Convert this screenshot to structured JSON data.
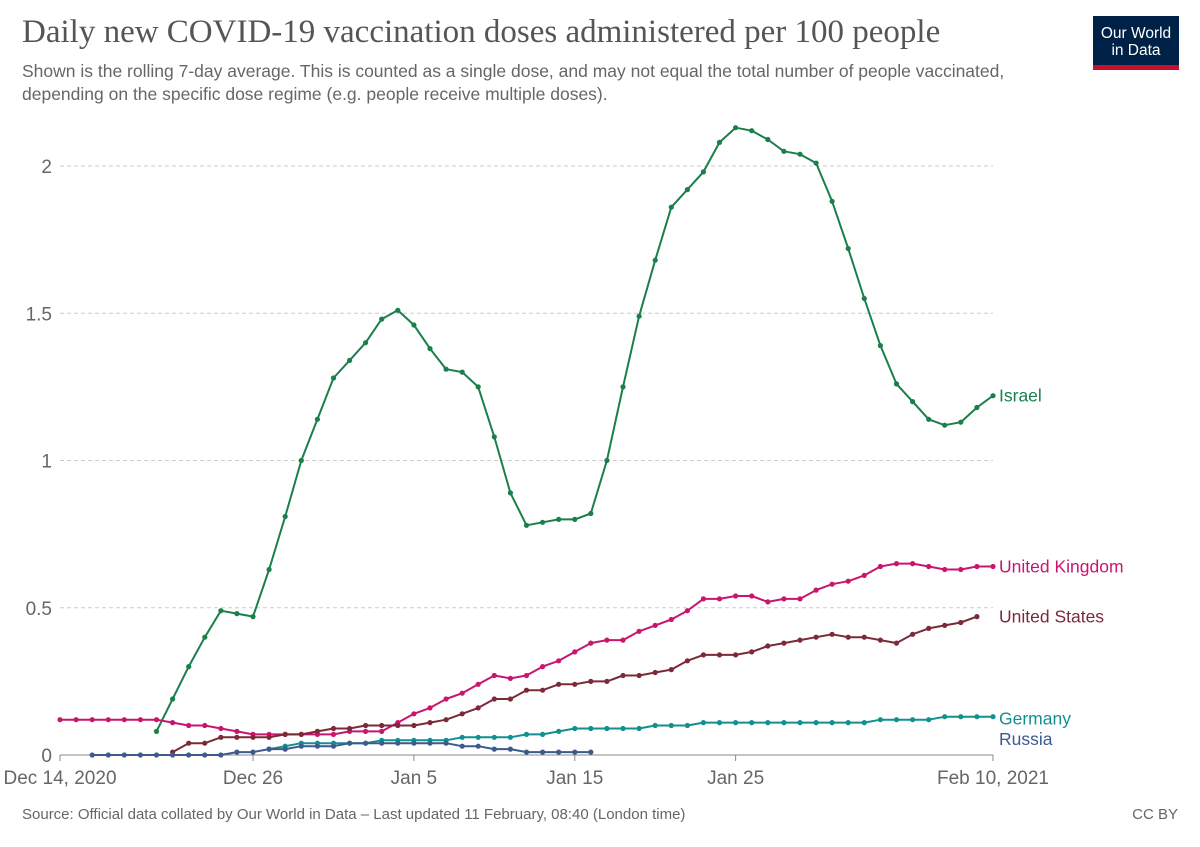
{
  "header": {
    "title": "Daily new COVID-19 vaccination doses administered per 100 people",
    "subtitle": "Shown is the rolling 7-day average. This is counted as a single dose, and may not equal the total number of people vaccinated, depending on the specific dose regime (e.g. people receive multiple doses).",
    "logo_line1": "Our World",
    "logo_line2": "in Data"
  },
  "footer": {
    "source": "Source: Official data collated by Our World in Data – Last updated 11 February, 08:40 (London time)",
    "license": "CC BY"
  },
  "colors": {
    "Israel": "#1a7f4b",
    "United Kingdom": "#c8156e",
    "United States": "#7a2a38",
    "Germany": "#12908f",
    "Russia": "#3c5a8c",
    "grid": "#cccccc",
    "axis_text": "#666666"
  },
  "chart_data": {
    "type": "line",
    "title": "Daily new COVID-19 vaccination doses administered per 100 people",
    "x_start": "2020-12-14",
    "x_end": "2021-02-10",
    "xticks": [
      {
        "label": "Dec 14, 2020",
        "date": "2020-12-14"
      },
      {
        "label": "Dec 26",
        "date": "2020-12-26"
      },
      {
        "label": "Jan 5",
        "date": "2021-01-05"
      },
      {
        "label": "Jan 15",
        "date": "2021-01-15"
      },
      {
        "label": "Jan 25",
        "date": "2021-01-25"
      },
      {
        "label": "Feb 10, 2021",
        "date": "2021-02-10"
      }
    ],
    "yticks": [
      {
        "label": "0",
        "value": 0
      },
      {
        "label": "0.5",
        "value": 0.5
      },
      {
        "label": "1",
        "value": 1
      },
      {
        "label": "1.5",
        "value": 1.5
      },
      {
        "label": "2",
        "value": 2
      }
    ],
    "ylim": [
      0,
      2.2
    ],
    "grid": true,
    "legend": "inline labels at line ends",
    "series": [
      {
        "name": "Israel",
        "start": "2020-12-20",
        "values": [
          0.08,
          0.19,
          0.3,
          0.4,
          0.49,
          0.48,
          0.47,
          0.63,
          0.81,
          1.0,
          1.14,
          1.28,
          1.34,
          1.4,
          1.48,
          1.51,
          1.46,
          1.38,
          1.31,
          1.3,
          1.25,
          1.08,
          0.89,
          0.78,
          0.79,
          0.8,
          0.8,
          0.82,
          1.0,
          1.25,
          1.49,
          1.68,
          1.86,
          1.92,
          1.98,
          2.08,
          2.13,
          2.12,
          2.09,
          2.05,
          2.04,
          2.01,
          1.88,
          1.72,
          1.55,
          1.39,
          1.26,
          1.2,
          1.14,
          1.12,
          1.13,
          1.18,
          1.22
        ]
      },
      {
        "name": "United Kingdom",
        "start": "2020-12-14",
        "values": [
          0.12,
          0.12,
          0.12,
          0.12,
          0.12,
          0.12,
          0.12,
          0.11,
          0.1,
          0.1,
          0.09,
          0.08,
          0.07,
          0.07,
          0.07,
          0.07,
          0.07,
          0.07,
          0.08,
          0.08,
          0.08,
          0.11,
          0.14,
          0.16,
          0.19,
          0.21,
          0.24,
          0.27,
          0.26,
          0.27,
          0.3,
          0.32,
          0.35,
          0.38,
          0.39,
          0.39,
          0.42,
          0.44,
          0.46,
          0.49,
          0.53,
          0.53,
          0.54,
          0.54,
          0.52,
          0.53,
          0.53,
          0.56,
          0.58,
          0.59,
          0.61,
          0.64,
          0.65,
          0.65,
          0.64,
          0.63,
          0.63,
          0.64,
          0.64
        ]
      },
      {
        "name": "United States",
        "start": "2020-12-21",
        "values": [
          0.01,
          0.04,
          0.04,
          0.06,
          0.06,
          0.06,
          0.06,
          0.07,
          0.07,
          0.08,
          0.09,
          0.09,
          0.1,
          0.1,
          0.1,
          0.1,
          0.11,
          0.12,
          0.14,
          0.16,
          0.19,
          0.19,
          0.22,
          0.22,
          0.24,
          0.24,
          0.25,
          0.25,
          0.27,
          0.27,
          0.28,
          0.29,
          0.32,
          0.34,
          0.34,
          0.34,
          0.35,
          0.37,
          0.38,
          0.39,
          0.4,
          0.41,
          0.4,
          0.4,
          0.39,
          0.38,
          0.41,
          0.43,
          0.44,
          0.45,
          0.47
        ]
      },
      {
        "name": "Germany",
        "start": "2020-12-27",
        "values": [
          0.02,
          0.03,
          0.04,
          0.04,
          0.04,
          0.04,
          0.04,
          0.05,
          0.05,
          0.05,
          0.05,
          0.05,
          0.06,
          0.06,
          0.06,
          0.06,
          0.07,
          0.07,
          0.08,
          0.09,
          0.09,
          0.09,
          0.09,
          0.09,
          0.1,
          0.1,
          0.1,
          0.11,
          0.11,
          0.11,
          0.11,
          0.11,
          0.11,
          0.11,
          0.11,
          0.11,
          0.11,
          0.11,
          0.12,
          0.12,
          0.12,
          0.12,
          0.13,
          0.13,
          0.13,
          0.13
        ]
      },
      {
        "name": "Russia",
        "start": "2020-12-16",
        "values": [
          0.0,
          0.0,
          0.0,
          0.0,
          0.0,
          0.0,
          0.0,
          0.0,
          0.0,
          0.01,
          0.01,
          0.02,
          0.02,
          0.03,
          0.03,
          0.03,
          0.04,
          0.04,
          0.04,
          0.04,
          0.04,
          0.04,
          0.04,
          0.03,
          0.03,
          0.02,
          0.02,
          0.01,
          0.01,
          0.01,
          0.01,
          0.01
        ]
      }
    ]
  }
}
